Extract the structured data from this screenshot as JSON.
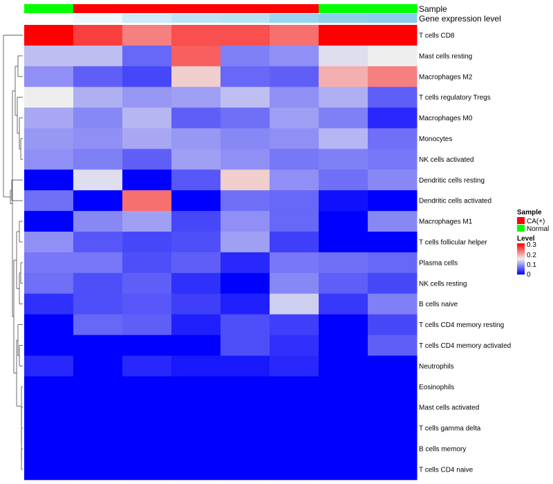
{
  "chart_data": {
    "type": "heatmap",
    "annotation_labels": [
      "Sample",
      "Gene expression level"
    ],
    "columns": [
      {
        "sample": "Normal",
        "expr": 0.0
      },
      {
        "sample": "CA(+)",
        "expr": 0.15
      },
      {
        "sample": "CA(+)",
        "expr": 0.4
      },
      {
        "sample": "CA(+)",
        "expr": 0.55
      },
      {
        "sample": "CA(+)",
        "expr": 0.6
      },
      {
        "sample": "CA(+)",
        "expr": 0.85
      },
      {
        "sample": "Normal",
        "expr": 0.95
      },
      {
        "sample": "Normal",
        "expr": 1.0
      }
    ],
    "rows": [
      {
        "label": "T cells CD8",
        "values": [
          0.3,
          0.26,
          0.22,
          0.25,
          0.25,
          0.23,
          0.3,
          0.3
        ]
      },
      {
        "label": "Mast cells resting",
        "values": [
          0.12,
          0.12,
          0.065,
          0.24,
          0.08,
          0.09,
          0.14,
          0.15
        ]
      },
      {
        "label": "Macrophages M2",
        "values": [
          0.09,
          0.06,
          0.045,
          0.17,
          0.065,
          0.06,
          0.19,
          0.22
        ]
      },
      {
        "label": "T cells regulatory  Tregs",
        "values": [
          0.15,
          0.11,
          0.095,
          0.1,
          0.12,
          0.09,
          0.11,
          0.06
        ]
      },
      {
        "label": "Macrophages M0",
        "values": [
          0.105,
          0.085,
          0.115,
          0.06,
          0.07,
          0.1,
          0.08,
          0.025
        ]
      },
      {
        "label": "Monocytes",
        "values": [
          0.095,
          0.09,
          0.105,
          0.095,
          0.085,
          0.09,
          0.115,
          0.07
        ]
      },
      {
        "label": "NK cells activated",
        "values": [
          0.09,
          0.08,
          0.06,
          0.1,
          0.09,
          0.075,
          0.08,
          0.075
        ]
      },
      {
        "label": "Dendritic cells resting",
        "values": [
          0.0,
          0.14,
          0.0,
          0.055,
          0.17,
          0.09,
          0.07,
          0.085
        ]
      },
      {
        "label": "Dendritic cells activated",
        "values": [
          0.07,
          0.0,
          0.23,
          0.0,
          0.07,
          0.065,
          0.01,
          0.0
        ]
      },
      {
        "label": "Macrophages M1",
        "values": [
          0.0,
          0.085,
          0.1,
          0.045,
          0.09,
          0.065,
          0.0,
          0.085
        ]
      },
      {
        "label": "T cells follicular helper",
        "values": [
          0.09,
          0.055,
          0.045,
          0.05,
          0.1,
          0.04,
          0.0,
          0.0
        ]
      },
      {
        "label": "Plasma cells",
        "values": [
          0.075,
          0.075,
          0.05,
          0.06,
          0.025,
          0.075,
          0.07,
          0.065
        ]
      },
      {
        "label": "NK cells resting",
        "values": [
          0.07,
          0.05,
          0.06,
          0.03,
          0.0,
          0.085,
          0.06,
          0.045
        ]
      },
      {
        "label": "B cells naive",
        "values": [
          0.03,
          0.05,
          0.055,
          0.04,
          0.02,
          0.13,
          0.035,
          0.08
        ]
      },
      {
        "label": "T cells CD4 memory resting",
        "values": [
          0.0,
          0.065,
          0.06,
          0.02,
          0.05,
          0.04,
          0.0,
          0.045
        ]
      },
      {
        "label": "T cells CD4 memory activated",
        "values": [
          0.0,
          0.0,
          0.0,
          0.0,
          0.05,
          0.03,
          0.0,
          0.06
        ]
      },
      {
        "label": "Neutrophils",
        "values": [
          0.025,
          0.0,
          0.025,
          0.015,
          0.015,
          0.025,
          0.0,
          0.0
        ]
      },
      {
        "label": "Eosinophils",
        "values": [
          0.0,
          0.0,
          0.0,
          0.0,
          0.0,
          0.0,
          0.0,
          0.0
        ]
      },
      {
        "label": "Mast cells activated",
        "values": [
          0.0,
          0.0,
          0.0,
          0.0,
          0.0,
          0.0,
          0.0,
          0.0
        ]
      },
      {
        "label": "T cells gamma delta",
        "values": [
          0.0,
          0.0,
          0.0,
          0.0,
          0.0,
          0.0,
          0.0,
          0.0
        ]
      },
      {
        "label": "B cells memory",
        "values": [
          0.0,
          0.0,
          0.0,
          0.0,
          0.0,
          0.0,
          0.0,
          0.0
        ]
      },
      {
        "label": "T cells CD4 naive",
        "values": [
          0.0,
          0.0,
          0.0,
          0.0,
          0.0,
          0.0,
          0.0,
          0.0
        ]
      }
    ],
    "legend": {
      "sample": {
        "title": "Sample",
        "items": [
          {
            "label": "CA(+)",
            "color": "#ff0000"
          },
          {
            "label": "Normal",
            "color": "#00ff00"
          }
        ]
      },
      "level": {
        "title": "Level",
        "ticks": [
          "0.3",
          "0.2",
          "0.1",
          "0"
        ],
        "range": [
          0,
          0.3
        ]
      }
    },
    "colors": {
      "low": "#0000ff",
      "mid": "#eeeeee",
      "high": "#ff0000",
      "expr_low": "#ffffff",
      "expr_high": "#87ceeb"
    }
  }
}
